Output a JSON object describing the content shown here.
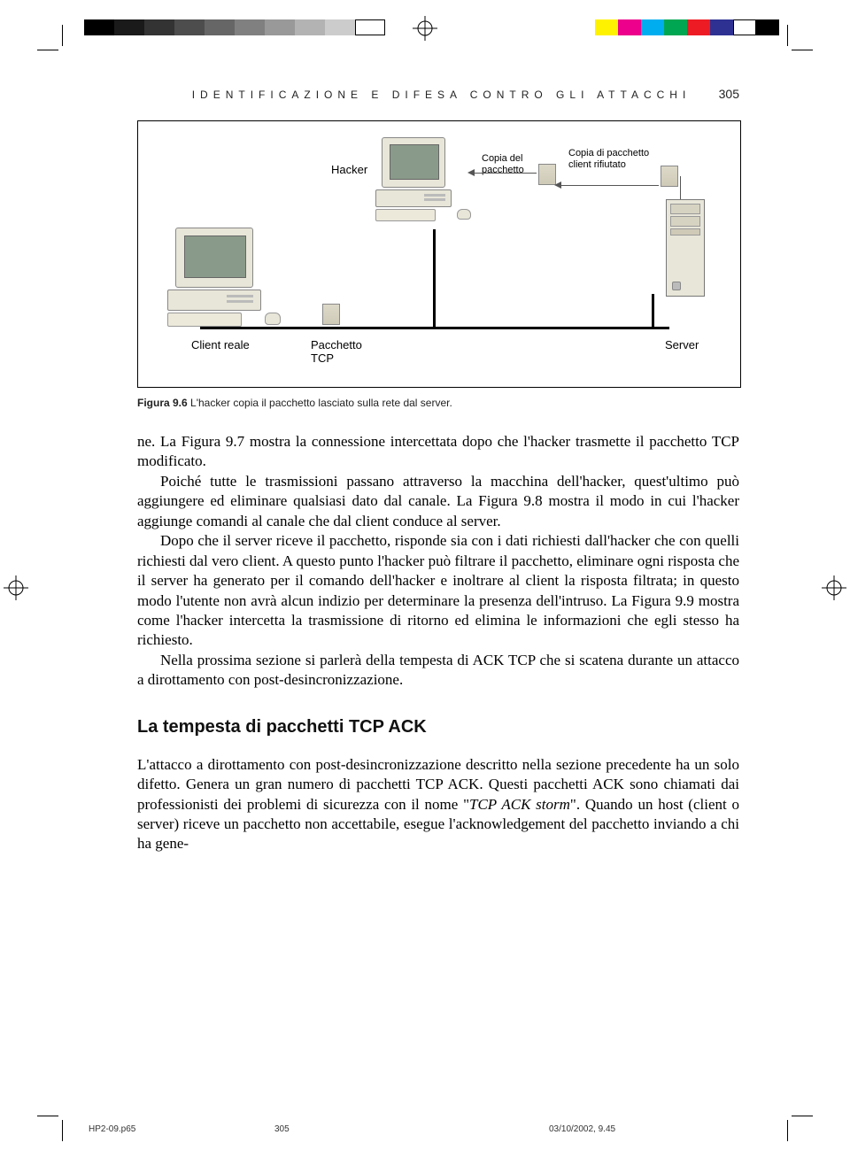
{
  "print_marks": {
    "bw_bar_shades": [
      "#000000",
      "#1a1a1a",
      "#333333",
      "#4d4d4d",
      "#666666",
      "#808080",
      "#999999",
      "#b3b3b3",
      "#cccccc",
      "#ffffff"
    ],
    "color_bar": [
      "#fff200",
      "#ec008c",
      "#00aeef",
      "#00a651",
      "#ed1c24",
      "#2e3192",
      "#ffffff",
      "#000000"
    ]
  },
  "header": {
    "running_title": "IDENTIFICAZIONE E DIFESA CONTRO GLI ATTACCHI",
    "page_number": "305"
  },
  "figure": {
    "labels": {
      "hacker": "Hacker",
      "copia_pacchetto": "Copia del\npacchetto",
      "copia_rifiutato": "Copia di pacchetto\nclient rifiutato",
      "client_reale": "Client reale",
      "pacchetto_tcp": "Pacchetto\nTCP",
      "server": "Server"
    },
    "colors": {
      "case": "#e8e6d8",
      "screen": "#8a9a8a",
      "border": "#888888",
      "line": "#000000",
      "arrow": "#555555"
    }
  },
  "caption": {
    "label": "Figura 9.6",
    "text": "L'hacker copia il pacchetto lasciato sulla rete dal server."
  },
  "body": {
    "p1": "ne. La Figura 9.7 mostra la connessione intercettata dopo che l'hacker trasmette il pacchetto TCP modificato.",
    "p2": "Poiché tutte le trasmissioni passano attraverso la macchina dell'hacker, quest'ultimo può aggiungere ed eliminare qualsiasi dato dal canale. La Figura 9.8 mostra il modo in cui l'hacker aggiunge comandi al canale che dal client conduce al server.",
    "p3": "Dopo che il server riceve il pacchetto, risponde sia con i dati richiesti dall'hacker che con quelli richiesti dal vero client. A questo punto l'hacker può filtrare il pacchetto, eliminare ogni risposta che il server ha generato per il comando dell'hacker e inoltrare al client la risposta filtrata; in questo modo l'utente non avrà alcun indizio per determinare la presenza dell'intruso. La Figura 9.9 mostra come l'hacker intercetta la trasmissione di ritorno ed elimina le informazioni che egli stesso ha richiesto.",
    "p4": "Nella prossima sezione si parlerà della tempesta di ACK TCP che si scatena durante un attacco a dirottamento con post-desincronizzazione."
  },
  "section_heading": "La tempesta di pacchetti TCP ACK",
  "body2": {
    "p1_a": "L'attacco a dirottamento con post-desincronizzazione descritto nella sezione precedente ha un solo difetto. Genera un gran numero di pacchetti TCP ACK. Questi pacchetti ACK sono chiamati dai professionisti dei problemi di sicurezza con il nome \"",
    "p1_em": "TCP ACK storm",
    "p1_b": "\". Quando un host (client o server) riceve un pacchetto non accettabile, esegue l'acknowledgement del pacchetto inviando a chi ha gene-"
  },
  "footer": {
    "file": "HP2-09.p65",
    "page": "305",
    "timestamp": "03/10/2002, 9.45"
  }
}
